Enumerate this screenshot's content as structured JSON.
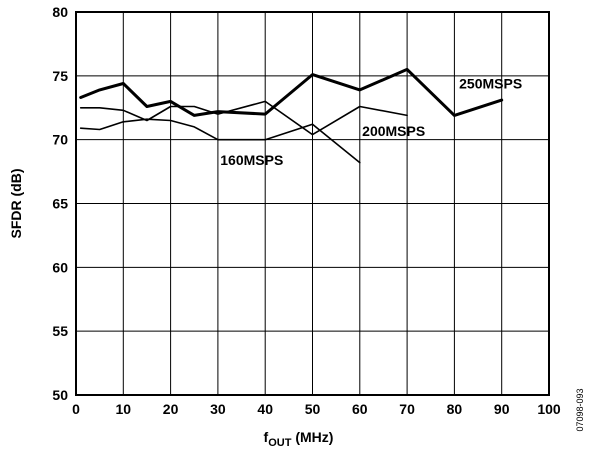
{
  "chart_data": {
    "type": "line",
    "xlabel_main": "f",
    "xlabel_sub": "OUT",
    "xlabel_unit": " (MHz)",
    "ylabel": "SFDR (dB)",
    "xlim": [
      0,
      100
    ],
    "ylim": [
      50,
      80
    ],
    "xticks": [
      0,
      10,
      20,
      30,
      40,
      50,
      60,
      70,
      80,
      90,
      100
    ],
    "yticks": [
      50,
      55,
      60,
      65,
      70,
      75,
      80
    ],
    "grid": true,
    "figure_id": "07098-093",
    "series": [
      {
        "name": "250MSPS",
        "stroke_width": 3,
        "label_x": 81,
        "label_y": 74.0,
        "points": [
          [
            1,
            73.3
          ],
          [
            5,
            73.9
          ],
          [
            10,
            74.4
          ],
          [
            15,
            72.6
          ],
          [
            20,
            73.0
          ],
          [
            25,
            71.9
          ],
          [
            30,
            72.2
          ],
          [
            40,
            72.0
          ],
          [
            50,
            75.1
          ],
          [
            60,
            73.9
          ],
          [
            70,
            75.5
          ],
          [
            80,
            71.9
          ],
          [
            90,
            73.1
          ]
        ]
      },
      {
        "name": "200MSPS",
        "stroke_width": 1.6,
        "label_x": 60.5,
        "label_y": 70.3,
        "points": [
          [
            1,
            72.5
          ],
          [
            5,
            72.5
          ],
          [
            10,
            72.3
          ],
          [
            15,
            71.5
          ],
          [
            20,
            72.6
          ],
          [
            25,
            72.6
          ],
          [
            30,
            72.0
          ],
          [
            40,
            73.0
          ],
          [
            50,
            70.4
          ],
          [
            60,
            72.6
          ],
          [
            70,
            71.9
          ]
        ]
      },
      {
        "name": "160MSPS",
        "stroke_width": 1.6,
        "label_x": 30.5,
        "label_y": 68.0,
        "points": [
          [
            1,
            70.9
          ],
          [
            5,
            70.8
          ],
          [
            10,
            71.4
          ],
          [
            15,
            71.6
          ],
          [
            20,
            71.5
          ],
          [
            25,
            71.0
          ],
          [
            30,
            70.0
          ],
          [
            40,
            70.0
          ],
          [
            50,
            71.2
          ],
          [
            60,
            68.2
          ]
        ]
      }
    ]
  }
}
